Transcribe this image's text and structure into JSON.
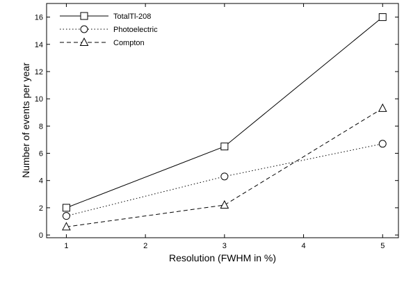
{
  "chart_data": {
    "type": "line",
    "xlabel": "Resolution (FWHM in %)",
    "ylabel": "Number of events per year",
    "xlim": [
      0.75,
      5.2
    ],
    "ylim": [
      -0.2,
      17.0
    ],
    "x_ticks": [
      1,
      2,
      3,
      4,
      5
    ],
    "y_ticks": [
      0,
      2,
      4,
      6,
      8,
      10,
      12,
      14,
      16
    ],
    "legend_placement": "top-left",
    "grid": false,
    "series": [
      {
        "name": "TotalTl-208",
        "marker": "square",
        "dash": "solid",
        "x": [
          1,
          3,
          5
        ],
        "y": [
          2.0,
          6.5,
          16.0
        ]
      },
      {
        "name": "Photoelectric",
        "marker": "circle",
        "dash": "dotted",
        "x": [
          1,
          3,
          5
        ],
        "y": [
          1.4,
          4.3,
          6.7
        ]
      },
      {
        "name": "Compton",
        "marker": "triangle",
        "dash": "dashed",
        "x": [
          1,
          3,
          5
        ],
        "y": [
          0.6,
          2.2,
          9.3
        ]
      }
    ]
  }
}
